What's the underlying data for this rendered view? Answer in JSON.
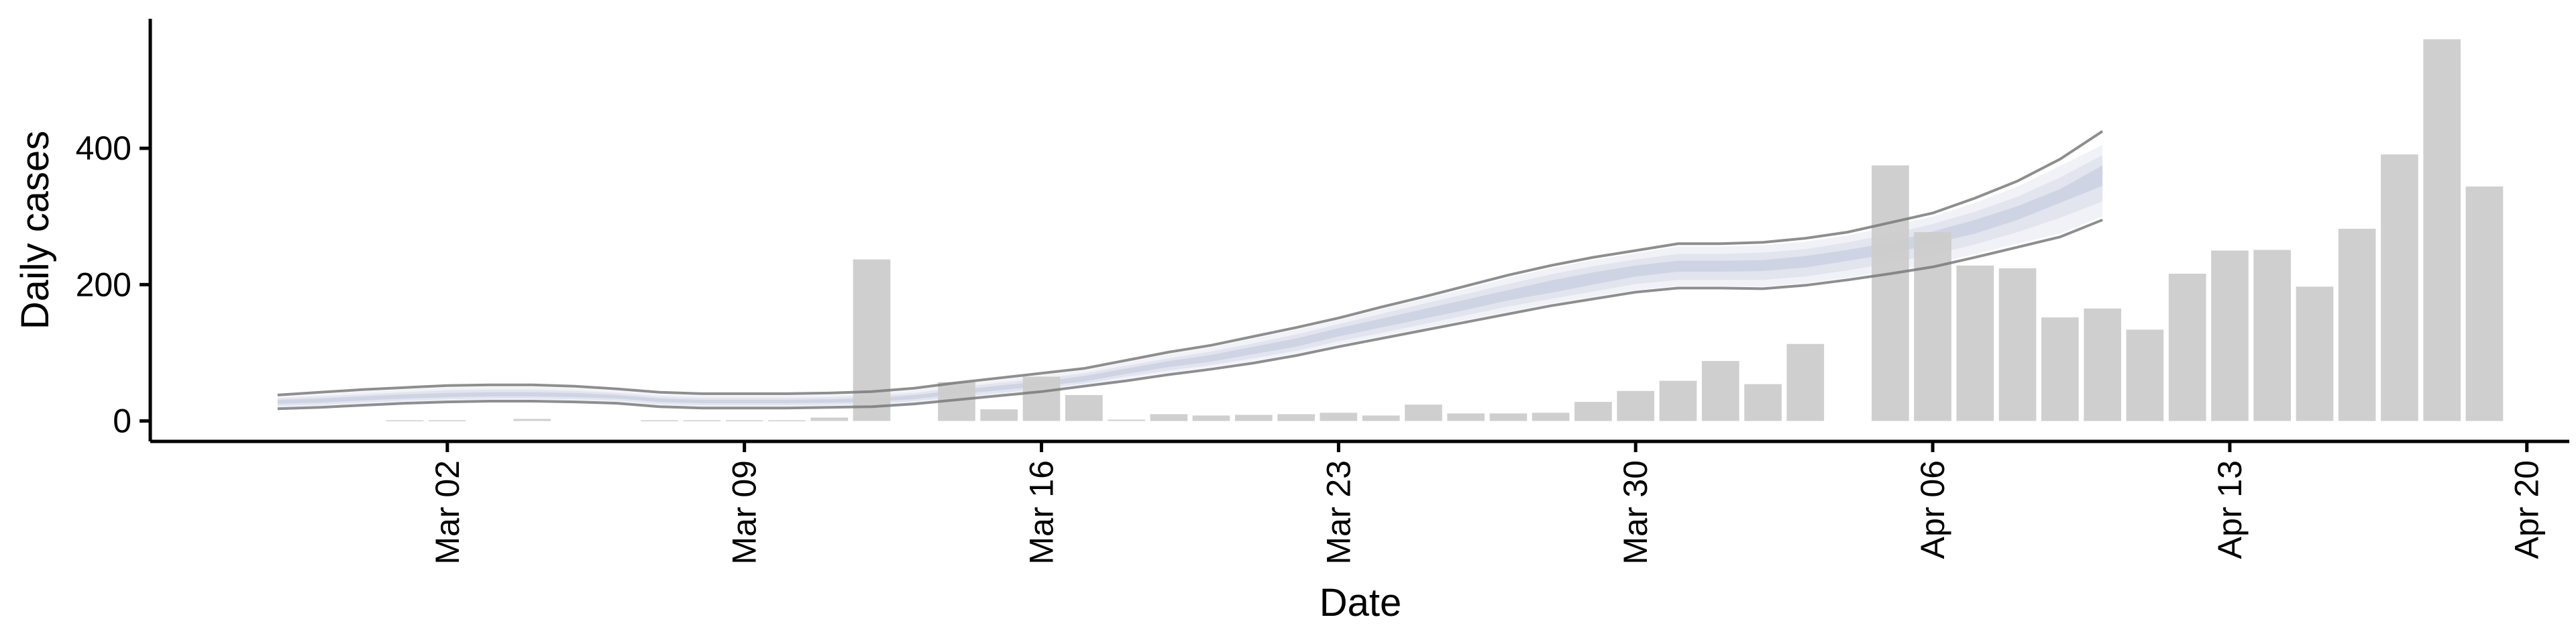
{
  "chart_data": {
    "type": "bar",
    "xlabel": "Date",
    "ylabel": "Daily cases",
    "ylim": [
      -30,
      590
    ],
    "yticks": [
      0,
      200,
      400
    ],
    "xlim": [
      "2020-02-24",
      "2020-04-21"
    ],
    "xticks": [
      {
        "date": "2020-03-02",
        "label": "Mar 02"
      },
      {
        "date": "2020-03-09",
        "label": "Mar 09"
      },
      {
        "date": "2020-03-16",
        "label": "Mar 16"
      },
      {
        "date": "2020-03-23",
        "label": "Mar 23"
      },
      {
        "date": "2020-03-30",
        "label": "Mar 30"
      },
      {
        "date": "2020-04-06",
        "label": "Apr 06"
      },
      {
        "date": "2020-04-13",
        "label": "Apr 13"
      },
      {
        "date": "2020-04-20",
        "label": "Apr 20"
      }
    ],
    "grid": false,
    "colors": {
      "bars": "#cccccc",
      "band_outer": "#e8eaf1",
      "band_middle": "#d5d9e7",
      "band_inner": "#c8cde0",
      "band_lines": "#7a7a7a"
    },
    "bars": {
      "dates": [
        "2020-03-01",
        "2020-03-02",
        "2020-03-04",
        "2020-03-07",
        "2020-03-08",
        "2020-03-09",
        "2020-03-10",
        "2020-03-11",
        "2020-03-12",
        "2020-03-14",
        "2020-03-15",
        "2020-03-16",
        "2020-03-17",
        "2020-03-18",
        "2020-03-19",
        "2020-03-20",
        "2020-03-21",
        "2020-03-22",
        "2020-03-23",
        "2020-03-24",
        "2020-03-25",
        "2020-03-26",
        "2020-03-27",
        "2020-03-28",
        "2020-03-29",
        "2020-03-30",
        "2020-03-31",
        "2020-04-01",
        "2020-04-02",
        "2020-04-03",
        "2020-04-05",
        "2020-04-06",
        "2020-04-07",
        "2020-04-08",
        "2020-04-09",
        "2020-04-10",
        "2020-04-11",
        "2020-04-12",
        "2020-04-13",
        "2020-04-14",
        "2020-04-15",
        "2020-04-16",
        "2020-04-17",
        "2020-04-18",
        "2020-04-19"
      ],
      "values": [
        1,
        1,
        3,
        1,
        1,
        1,
        1,
        5,
        237,
        57,
        17,
        65,
        38,
        2,
        10,
        8,
        9,
        10,
        12,
        8,
        24,
        11,
        11,
        12,
        28,
        44,
        59,
        88,
        54,
        113,
        375,
        277,
        228,
        224,
        152,
        165,
        134,
        216,
        250,
        251,
        197,
        282,
        391,
        560,
        344
      ]
    },
    "band": {
      "dates": [
        "2020-02-27",
        "2020-02-28",
        "2020-02-29",
        "2020-03-01",
        "2020-03-02",
        "2020-03-03",
        "2020-03-04",
        "2020-03-05",
        "2020-03-06",
        "2020-03-07",
        "2020-03-08",
        "2020-03-09",
        "2020-03-10",
        "2020-03-11",
        "2020-03-12",
        "2020-03-13",
        "2020-03-14",
        "2020-03-15",
        "2020-03-16",
        "2020-03-17",
        "2020-03-18",
        "2020-03-19",
        "2020-03-20",
        "2020-03-21",
        "2020-03-22",
        "2020-03-23",
        "2020-03-24",
        "2020-03-25",
        "2020-03-26",
        "2020-03-27",
        "2020-03-28",
        "2020-03-29",
        "2020-03-30",
        "2020-03-31",
        "2020-04-01",
        "2020-04-02",
        "2020-04-03",
        "2020-04-04",
        "2020-04-05",
        "2020-04-06",
        "2020-04-07",
        "2020-04-08",
        "2020-04-09",
        "2020-04-10"
      ],
      "outer_lower": [
        20,
        22,
        25,
        28,
        30,
        31,
        31,
        30,
        28,
        23,
        21,
        21,
        21,
        22,
        23,
        27,
        33,
        39,
        45,
        53,
        62,
        71,
        79,
        88,
        99,
        112,
        124,
        136,
        148,
        160,
        172,
        182,
        192,
        198,
        198,
        197,
        202,
        210,
        220,
        230,
        245,
        260,
        275,
        300
      ],
      "outer_upper": [
        35,
        39,
        43,
        46,
        49,
        50,
        50,
        48,
        44,
        39,
        37,
        37,
        37,
        38,
        40,
        45,
        53,
        60,
        67,
        74,
        86,
        98,
        108,
        121,
        134,
        148,
        164,
        179,
        194,
        210,
        224,
        236,
        246,
        256,
        256,
        258,
        263,
        272,
        286,
        300,
        320,
        344,
        374,
        405
      ],
      "inner_lower": [
        25,
        27,
        30,
        33,
        35,
        36,
        36,
        35,
        33,
        28,
        26,
        26,
        26,
        27,
        28,
        32,
        39,
        45,
        51,
        58,
        69,
        79,
        87,
        98,
        109,
        124,
        137,
        150,
        163,
        177,
        188,
        200,
        212,
        219,
        219,
        220,
        225,
        235,
        245,
        260,
        275,
        295,
        320,
        345
      ],
      "inner_upper": [
        31,
        33,
        36,
        39,
        41,
        42,
        42,
        41,
        38,
        33,
        31,
        31,
        31,
        32,
        33,
        38,
        45,
        52,
        58,
        66,
        77,
        88,
        97,
        109,
        121,
        136,
        150,
        164,
        178,
        192,
        206,
        218,
        228,
        235,
        235,
        236,
        242,
        251,
        262,
        278,
        295,
        315,
        340,
        375
      ],
      "mid_lower": [
        22,
        24,
        27,
        30,
        32,
        33,
        33,
        32,
        30,
        25,
        23,
        23,
        23,
        24,
        25,
        29,
        35,
        41,
        47,
        55,
        65,
        74,
        82,
        92,
        103,
        117,
        129,
        142,
        155,
        168,
        179,
        190,
        201,
        207,
        207,
        207,
        212,
        221,
        232,
        244,
        259,
        277,
        298,
        322
      ],
      "mid_upper": [
        33,
        36,
        39,
        42,
        45,
        46,
        46,
        44,
        41,
        36,
        34,
        34,
        34,
        35,
        37,
        41,
        49,
        56,
        62,
        70,
        81,
        92,
        102,
        114,
        127,
        142,
        157,
        172,
        186,
        201,
        215,
        227,
        237,
        245,
        245,
        247,
        252,
        262,
        274,
        289,
        307,
        329,
        357,
        390
      ],
      "line_upper": [
        38,
        42,
        46,
        49,
        52,
        53,
        53,
        51,
        47,
        42,
        40,
        40,
        40,
        41,
        43,
        48,
        56,
        63,
        70,
        77,
        89,
        101,
        111,
        124,
        137,
        151,
        167,
        182,
        198,
        214,
        228,
        240,
        250,
        260,
        260,
        262,
        268,
        277,
        291,
        305,
        327,
        352,
        384,
        425
      ],
      "line_lower": [
        18,
        20,
        23,
        26,
        28,
        29,
        29,
        28,
        26,
        21,
        19,
        19,
        19,
        20,
        21,
        25,
        31,
        37,
        43,
        51,
        59,
        68,
        76,
        85,
        96,
        109,
        121,
        133,
        145,
        157,
        169,
        179,
        189,
        195,
        195,
        194,
        199,
        207,
        216,
        226,
        240,
        255,
        270,
        295
      ]
    }
  }
}
